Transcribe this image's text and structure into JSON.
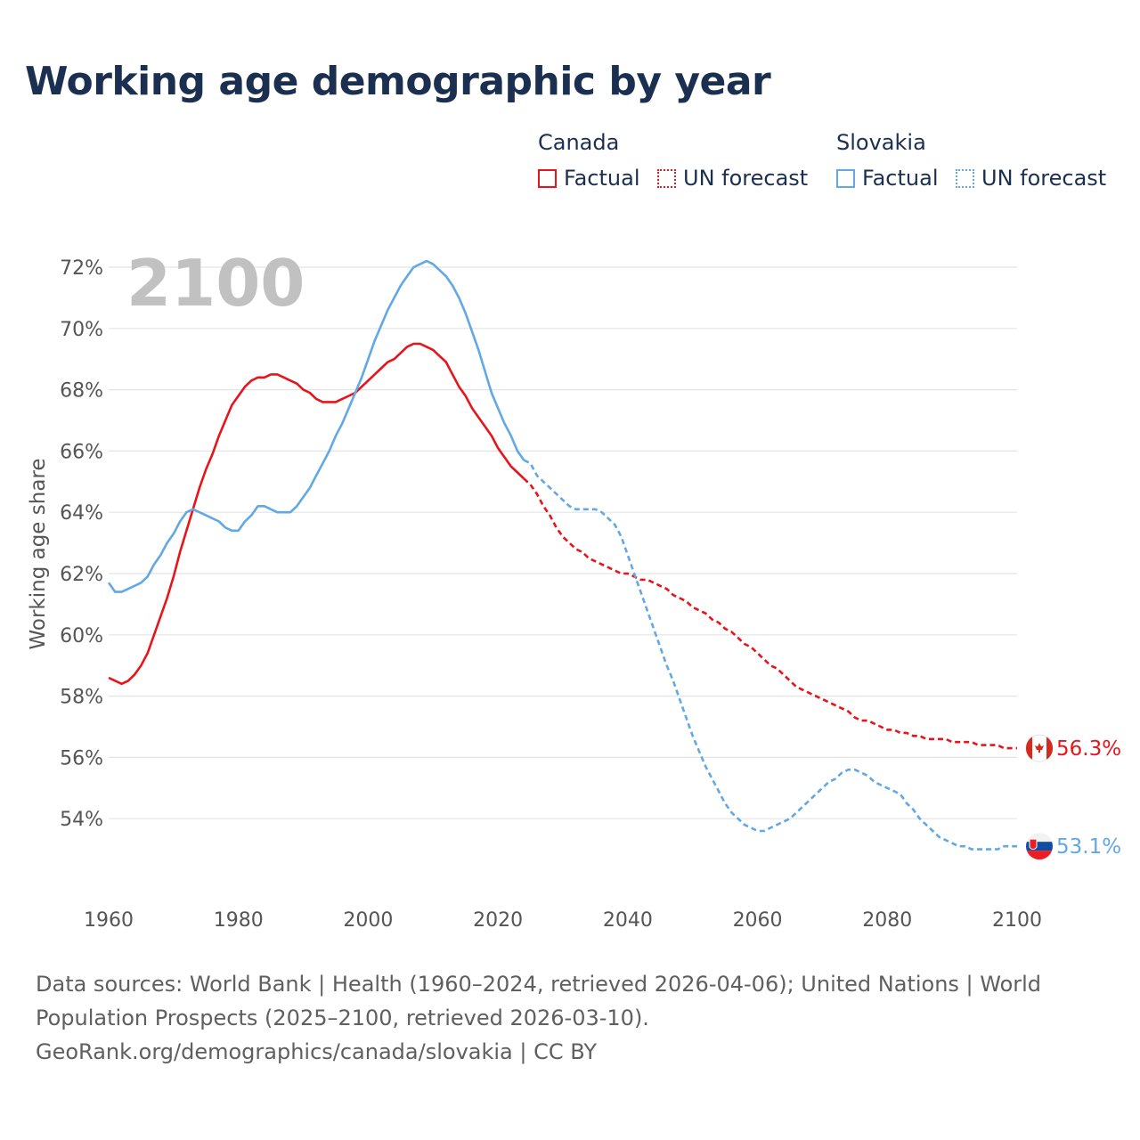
{
  "title": "Working age demographic by year",
  "legend": {
    "groups": [
      {
        "name": "Canada",
        "color": "#e8141b",
        "factual_label": "Factual",
        "forecast_label": "UN forecast"
      },
      {
        "name": "Slovakia",
        "color": "#62a8e5",
        "factual_label": "Factual",
        "forecast_label": "UN forecast"
      }
    ]
  },
  "footer": {
    "line1": "Data sources: World Bank | Health (1960–2024, retrieved 2026-04-06); United Nations | World",
    "line2": "Population Prospects (2025–2100, retrieved 2026-03-10).",
    "line3": "GeoRank.org/demographics/canada/slovakia | CC BY"
  },
  "chart_data": {
    "type": "line",
    "title": "Working age demographic by year",
    "xlabel": "",
    "ylabel": "Working age share",
    "xlim": [
      1960,
      2100
    ],
    "ylim": [
      52,
      72
    ],
    "x_ticks": [
      1960,
      1980,
      2000,
      2020,
      2040,
      2060,
      2080,
      2100
    ],
    "x_tick_labels": [
      "1960",
      "1980",
      "2000",
      "2020",
      "2040",
      "2060",
      "2080",
      "2100"
    ],
    "y_ticks": [
      54,
      56,
      58,
      60,
      62,
      64,
      66,
      68,
      70,
      72
    ],
    "y_tick_labels": [
      "54%",
      "56%",
      "58%",
      "60%",
      "62%",
      "64%",
      "66%",
      "68%",
      "70%",
      "72%"
    ],
    "grid": true,
    "year_watermark": "2100",
    "factual_end_year": 2024,
    "series": [
      {
        "name": "Canada",
        "color": "#e8141b",
        "end_label": "56.3%",
        "flag": "canada-flag-icon",
        "points": [
          [
            1960,
            58.6
          ],
          [
            1961,
            58.5
          ],
          [
            1962,
            58.4
          ],
          [
            1963,
            58.5
          ],
          [
            1964,
            58.7
          ],
          [
            1965,
            59.0
          ],
          [
            1966,
            59.4
          ],
          [
            1967,
            60.0
          ],
          [
            1968,
            60.6
          ],
          [
            1969,
            61.2
          ],
          [
            1970,
            61.9
          ],
          [
            1971,
            62.7
          ],
          [
            1972,
            63.4
          ],
          [
            1973,
            64.1
          ],
          [
            1974,
            64.8
          ],
          [
            1975,
            65.4
          ],
          [
            1976,
            65.9
          ],
          [
            1977,
            66.5
          ],
          [
            1978,
            67.0
          ],
          [
            1979,
            67.5
          ],
          [
            1980,
            67.8
          ],
          [
            1981,
            68.1
          ],
          [
            1982,
            68.3
          ],
          [
            1983,
            68.4
          ],
          [
            1984,
            68.4
          ],
          [
            1985,
            68.5
          ],
          [
            1986,
            68.5
          ],
          [
            1987,
            68.4
          ],
          [
            1988,
            68.3
          ],
          [
            1989,
            68.2
          ],
          [
            1990,
            68.0
          ],
          [
            1991,
            67.9
          ],
          [
            1992,
            67.7
          ],
          [
            1993,
            67.6
          ],
          [
            1994,
            67.6
          ],
          [
            1995,
            67.6
          ],
          [
            1996,
            67.7
          ],
          [
            1997,
            67.8
          ],
          [
            1998,
            67.9
          ],
          [
            1999,
            68.1
          ],
          [
            2000,
            68.3
          ],
          [
            2001,
            68.5
          ],
          [
            2002,
            68.7
          ],
          [
            2003,
            68.9
          ],
          [
            2004,
            69.0
          ],
          [
            2005,
            69.2
          ],
          [
            2006,
            69.4
          ],
          [
            2007,
            69.5
          ],
          [
            2008,
            69.5
          ],
          [
            2009,
            69.4
          ],
          [
            2010,
            69.3
          ],
          [
            2011,
            69.1
          ],
          [
            2012,
            68.9
          ],
          [
            2013,
            68.5
          ],
          [
            2014,
            68.1
          ],
          [
            2015,
            67.8
          ],
          [
            2016,
            67.4
          ],
          [
            2017,
            67.1
          ],
          [
            2018,
            66.8
          ],
          [
            2019,
            66.5
          ],
          [
            2020,
            66.1
          ],
          [
            2021,
            65.8
          ],
          [
            2022,
            65.5
          ],
          [
            2023,
            65.3
          ],
          [
            2024,
            65.1
          ],
          [
            2025,
            64.9
          ],
          [
            2026,
            64.6
          ],
          [
            2027,
            64.2
          ],
          [
            2028,
            63.9
          ],
          [
            2029,
            63.5
          ],
          [
            2030,
            63.2
          ],
          [
            2031,
            63.0
          ],
          [
            2032,
            62.8
          ],
          [
            2033,
            62.7
          ],
          [
            2034,
            62.5
          ],
          [
            2035,
            62.4
          ],
          [
            2036,
            62.3
          ],
          [
            2037,
            62.2
          ],
          [
            2038,
            62.1
          ],
          [
            2039,
            62.0
          ],
          [
            2040,
            62.0
          ],
          [
            2041,
            61.9
          ],
          [
            2042,
            61.8
          ],
          [
            2043,
            61.8
          ],
          [
            2044,
            61.7
          ],
          [
            2045,
            61.6
          ],
          [
            2046,
            61.5
          ],
          [
            2047,
            61.3
          ],
          [
            2048,
            61.2
          ],
          [
            2049,
            61.1
          ],
          [
            2050,
            60.9
          ],
          [
            2051,
            60.8
          ],
          [
            2052,
            60.7
          ],
          [
            2053,
            60.5
          ],
          [
            2054,
            60.4
          ],
          [
            2055,
            60.2
          ],
          [
            2056,
            60.1
          ],
          [
            2057,
            59.9
          ],
          [
            2058,
            59.7
          ],
          [
            2059,
            59.6
          ],
          [
            2060,
            59.4
          ],
          [
            2061,
            59.2
          ],
          [
            2062,
            59.0
          ],
          [
            2063,
            58.9
          ],
          [
            2064,
            58.7
          ],
          [
            2065,
            58.5
          ],
          [
            2066,
            58.3
          ],
          [
            2067,
            58.2
          ],
          [
            2068,
            58.1
          ],
          [
            2069,
            58.0
          ],
          [
            2070,
            57.9
          ],
          [
            2071,
            57.8
          ],
          [
            2072,
            57.7
          ],
          [
            2073,
            57.6
          ],
          [
            2074,
            57.5
          ],
          [
            2075,
            57.3
          ],
          [
            2076,
            57.2
          ],
          [
            2077,
            57.2
          ],
          [
            2078,
            57.1
          ],
          [
            2079,
            57.0
          ],
          [
            2080,
            56.9
          ],
          [
            2081,
            56.9
          ],
          [
            2082,
            56.8
          ],
          [
            2083,
            56.8
          ],
          [
            2084,
            56.7
          ],
          [
            2085,
            56.7
          ],
          [
            2086,
            56.6
          ],
          [
            2087,
            56.6
          ],
          [
            2088,
            56.6
          ],
          [
            2089,
            56.6
          ],
          [
            2090,
            56.5
          ],
          [
            2091,
            56.5
          ],
          [
            2092,
            56.5
          ],
          [
            2093,
            56.5
          ],
          [
            2094,
            56.4
          ],
          [
            2095,
            56.4
          ],
          [
            2096,
            56.4
          ],
          [
            2097,
            56.4
          ],
          [
            2098,
            56.3
          ],
          [
            2099,
            56.3
          ],
          [
            2100,
            56.3
          ]
        ]
      },
      {
        "name": "Slovakia",
        "color": "#62a8e5",
        "end_label": "53.1%",
        "flag": "slovakia-flag-icon",
        "points": [
          [
            1960,
            61.7
          ],
          [
            1961,
            61.4
          ],
          [
            1962,
            61.4
          ],
          [
            1963,
            61.5
          ],
          [
            1964,
            61.6
          ],
          [
            1965,
            61.7
          ],
          [
            1966,
            61.9
          ],
          [
            1967,
            62.3
          ],
          [
            1968,
            62.6
          ],
          [
            1969,
            63.0
          ],
          [
            1970,
            63.3
          ],
          [
            1971,
            63.7
          ],
          [
            1972,
            64.0
          ],
          [
            1973,
            64.1
          ],
          [
            1974,
            64.0
          ],
          [
            1975,
            63.9
          ],
          [
            1976,
            63.8
          ],
          [
            1977,
            63.7
          ],
          [
            1978,
            63.5
          ],
          [
            1979,
            63.4
          ],
          [
            1980,
            63.4
          ],
          [
            1981,
            63.7
          ],
          [
            1982,
            63.9
          ],
          [
            1983,
            64.2
          ],
          [
            1984,
            64.2
          ],
          [
            1985,
            64.1
          ],
          [
            1986,
            64.0
          ],
          [
            1987,
            64.0
          ],
          [
            1988,
            64.0
          ],
          [
            1989,
            64.2
          ],
          [
            1990,
            64.5
          ],
          [
            1991,
            64.8
          ],
          [
            1992,
            65.2
          ],
          [
            1993,
            65.6
          ],
          [
            1994,
            66.0
          ],
          [
            1995,
            66.5
          ],
          [
            1996,
            66.9
          ],
          [
            1997,
            67.4
          ],
          [
            1998,
            67.9
          ],
          [
            1999,
            68.4
          ],
          [
            2000,
            69.0
          ],
          [
            2001,
            69.6
          ],
          [
            2002,
            70.1
          ],
          [
            2003,
            70.6
          ],
          [
            2004,
            71.0
          ],
          [
            2005,
            71.4
          ],
          [
            2006,
            71.7
          ],
          [
            2007,
            72.0
          ],
          [
            2008,
            72.1
          ],
          [
            2009,
            72.2
          ],
          [
            2010,
            72.1
          ],
          [
            2011,
            71.9
          ],
          [
            2012,
            71.7
          ],
          [
            2013,
            71.4
          ],
          [
            2014,
            71.0
          ],
          [
            2015,
            70.5
          ],
          [
            2016,
            69.9
          ],
          [
            2017,
            69.3
          ],
          [
            2018,
            68.6
          ],
          [
            2019,
            67.9
          ],
          [
            2020,
            67.4
          ],
          [
            2021,
            66.9
          ],
          [
            2022,
            66.5
          ],
          [
            2023,
            66.0
          ],
          [
            2024,
            65.7
          ],
          [
            2025,
            65.6
          ],
          [
            2026,
            65.2
          ],
          [
            2027,
            65.0
          ],
          [
            2028,
            64.8
          ],
          [
            2029,
            64.6
          ],
          [
            2030,
            64.4
          ],
          [
            2031,
            64.2
          ],
          [
            2032,
            64.1
          ],
          [
            2033,
            64.1
          ],
          [
            2034,
            64.1
          ],
          [
            2035,
            64.1
          ],
          [
            2036,
            64.0
          ],
          [
            2037,
            63.8
          ],
          [
            2038,
            63.6
          ],
          [
            2039,
            63.2
          ],
          [
            2040,
            62.6
          ],
          [
            2041,
            62.0
          ],
          [
            2042,
            61.4
          ],
          [
            2043,
            60.8
          ],
          [
            2044,
            60.2
          ],
          [
            2045,
            59.6
          ],
          [
            2046,
            59.0
          ],
          [
            2047,
            58.5
          ],
          [
            2048,
            57.9
          ],
          [
            2049,
            57.3
          ],
          [
            2050,
            56.7
          ],
          [
            2051,
            56.2
          ],
          [
            2052,
            55.7
          ],
          [
            2053,
            55.3
          ],
          [
            2054,
            54.9
          ],
          [
            2055,
            54.5
          ],
          [
            2056,
            54.2
          ],
          [
            2057,
            54.0
          ],
          [
            2058,
            53.8
          ],
          [
            2059,
            53.7
          ],
          [
            2060,
            53.6
          ],
          [
            2061,
            53.6
          ],
          [
            2062,
            53.7
          ],
          [
            2063,
            53.8
          ],
          [
            2064,
            53.9
          ],
          [
            2065,
            54.0
          ],
          [
            2066,
            54.2
          ],
          [
            2067,
            54.4
          ],
          [
            2068,
            54.6
          ],
          [
            2069,
            54.8
          ],
          [
            2070,
            55.0
          ],
          [
            2071,
            55.2
          ],
          [
            2072,
            55.3
          ],
          [
            2073,
            55.5
          ],
          [
            2074,
            55.6
          ],
          [
            2075,
            55.6
          ],
          [
            2076,
            55.5
          ],
          [
            2077,
            55.4
          ],
          [
            2078,
            55.2
          ],
          [
            2079,
            55.1
          ],
          [
            2080,
            55.0
          ],
          [
            2081,
            54.9
          ],
          [
            2082,
            54.8
          ],
          [
            2083,
            54.5
          ],
          [
            2084,
            54.3
          ],
          [
            2085,
            54.0
          ],
          [
            2086,
            53.8
          ],
          [
            2087,
            53.6
          ],
          [
            2088,
            53.4
          ],
          [
            2089,
            53.3
          ],
          [
            2090,
            53.2
          ],
          [
            2091,
            53.1
          ],
          [
            2092,
            53.1
          ],
          [
            2093,
            53.0
          ],
          [
            2094,
            53.0
          ],
          [
            2095,
            53.0
          ],
          [
            2096,
            53.0
          ],
          [
            2097,
            53.0
          ],
          [
            2098,
            53.1
          ],
          [
            2099,
            53.1
          ],
          [
            2100,
            53.1
          ]
        ]
      }
    ]
  }
}
